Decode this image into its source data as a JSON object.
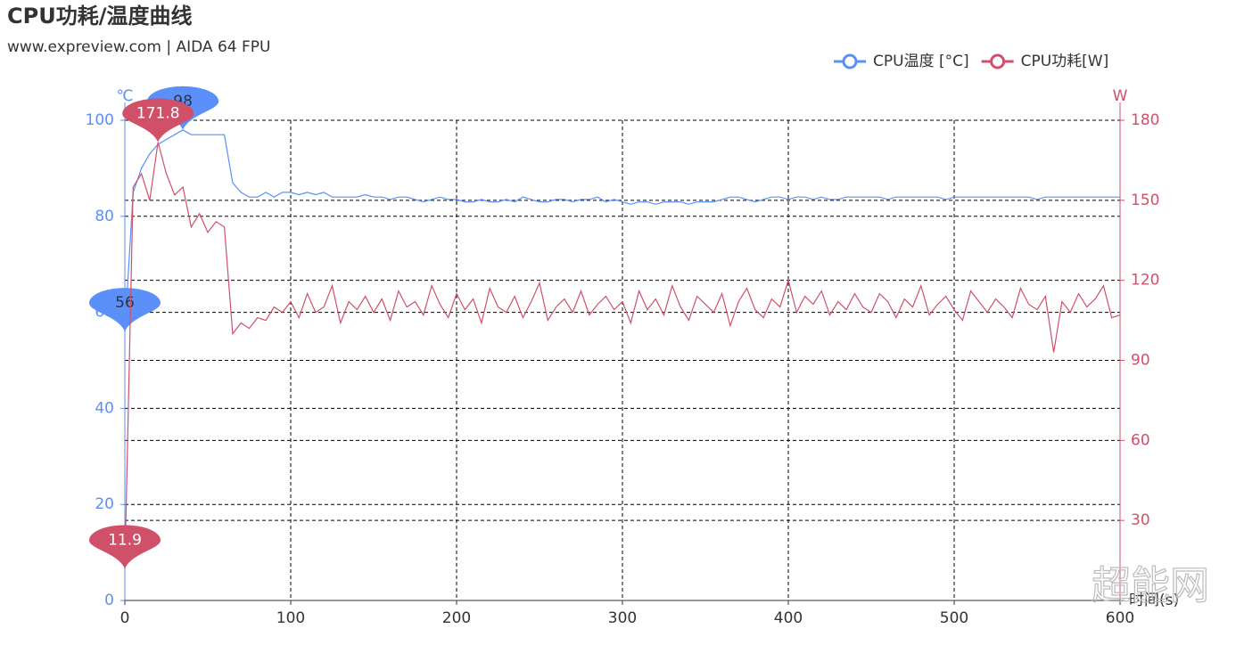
{
  "chart_data": {
    "type": "line",
    "title": "CPU功耗/温度曲线",
    "subtitle": "www.expreview.com | AIDA 64 FPU",
    "x_label": "时间(s)",
    "y_label": "℃",
    "y2_label": "W",
    "watermark": "超能网",
    "x": [
      0,
      5,
      10,
      15,
      20,
      25,
      30,
      35,
      40,
      45,
      50,
      55,
      60,
      65,
      70,
      75,
      80,
      85,
      90,
      95,
      100,
      105,
      110,
      115,
      120,
      125,
      130,
      135,
      140,
      145,
      150,
      155,
      160,
      165,
      170,
      175,
      180,
      185,
      190,
      195,
      200,
      205,
      210,
      215,
      220,
      225,
      230,
      235,
      240,
      245,
      250,
      255,
      260,
      265,
      270,
      275,
      280,
      285,
      290,
      295,
      300,
      305,
      310,
      315,
      320,
      325,
      330,
      335,
      340,
      345,
      350,
      355,
      360,
      365,
      370,
      375,
      380,
      385,
      390,
      395,
      400,
      405,
      410,
      415,
      420,
      425,
      430,
      435,
      440,
      445,
      450,
      455,
      460,
      465,
      470,
      475,
      480,
      485,
      490,
      495,
      500,
      505,
      510,
      515,
      520,
      525,
      530,
      535,
      540,
      545,
      550,
      555,
      560,
      565,
      570,
      575,
      580,
      585,
      590,
      595,
      600
    ],
    "xlim": [
      0,
      600
    ],
    "xticks": [
      0,
      100,
      200,
      300,
      400,
      500,
      600
    ],
    "ylim": [
      0,
      100
    ],
    "yticks": [
      0,
      20,
      40,
      60,
      80,
      100
    ],
    "y2lim": [
      0,
      180
    ],
    "y2ticks": [
      0,
      30,
      60,
      90,
      120,
      150,
      180
    ],
    "grid": true,
    "series": [
      {
        "name": "CPU温度 [°C]",
        "color": "#5b8ff9",
        "axis": "y",
        "max": 98,
        "min": 56,
        "values": [
          56,
          85,
          90,
          93,
          95,
          96,
          97,
          98,
          97,
          97,
          97,
          97,
          97,
          87,
          85,
          84,
          84,
          85,
          84,
          85,
          85,
          84.5,
          85,
          84.5,
          85,
          84,
          84,
          84,
          84,
          84.5,
          84,
          84,
          83.5,
          84,
          84,
          83.5,
          83,
          83.5,
          84,
          83.5,
          83.5,
          83,
          83,
          83.5,
          83,
          83,
          83.5,
          83,
          84,
          83.5,
          83,
          83,
          83.5,
          83.5,
          83,
          83.5,
          83.5,
          84,
          83,
          83.5,
          83,
          82.5,
          83,
          83,
          82.5,
          83,
          83,
          83,
          82.5,
          83,
          83,
          83,
          83.5,
          84,
          84,
          83.5,
          83,
          83.5,
          84,
          84,
          83.5,
          84,
          84,
          83.5,
          84,
          83.5,
          83.5,
          84,
          84,
          84,
          84,
          84,
          83.5,
          84,
          84,
          84,
          84,
          84,
          84,
          83.5,
          84,
          84,
          84,
          84,
          84,
          84,
          84,
          84,
          84,
          84,
          83.5,
          84,
          84,
          84,
          84,
          84,
          84,
          84,
          84,
          84,
          84
        ]
      },
      {
        "name": "CPU功耗[W]",
        "color": "#d0506a",
        "axis": "y2",
        "max": 171.8,
        "min": 11.9,
        "values": [
          11.9,
          155,
          160,
          150,
          171.8,
          160,
          152,
          155,
          140,
          145,
          138,
          142,
          140,
          100,
          104,
          102,
          106,
          105,
          110,
          108,
          112,
          106,
          115,
          108,
          110,
          118,
          104,
          112,
          109,
          114,
          108,
          113,
          105,
          116,
          110,
          112,
          107,
          118,
          111,
          106,
          115,
          109,
          113,
          104,
          117,
          110,
          108,
          114,
          106,
          112,
          119,
          105,
          110,
          113,
          108,
          116,
          107,
          111,
          114,
          109,
          112,
          104,
          116,
          109,
          113,
          107,
          118,
          110,
          105,
          114,
          111,
          108,
          115,
          103,
          112,
          117,
          109,
          106,
          113,
          110,
          120,
          108,
          114,
          111,
          116,
          107,
          112,
          109,
          115,
          110,
          108,
          115,
          112,
          106,
          113,
          110,
          118,
          107,
          111,
          114,
          109,
          105,
          116,
          112,
          108,
          113,
          110,
          106,
          117,
          111,
          109,
          114,
          93,
          112,
          108,
          115,
          110,
          113,
          118,
          106,
          107
        ]
      }
    ]
  }
}
